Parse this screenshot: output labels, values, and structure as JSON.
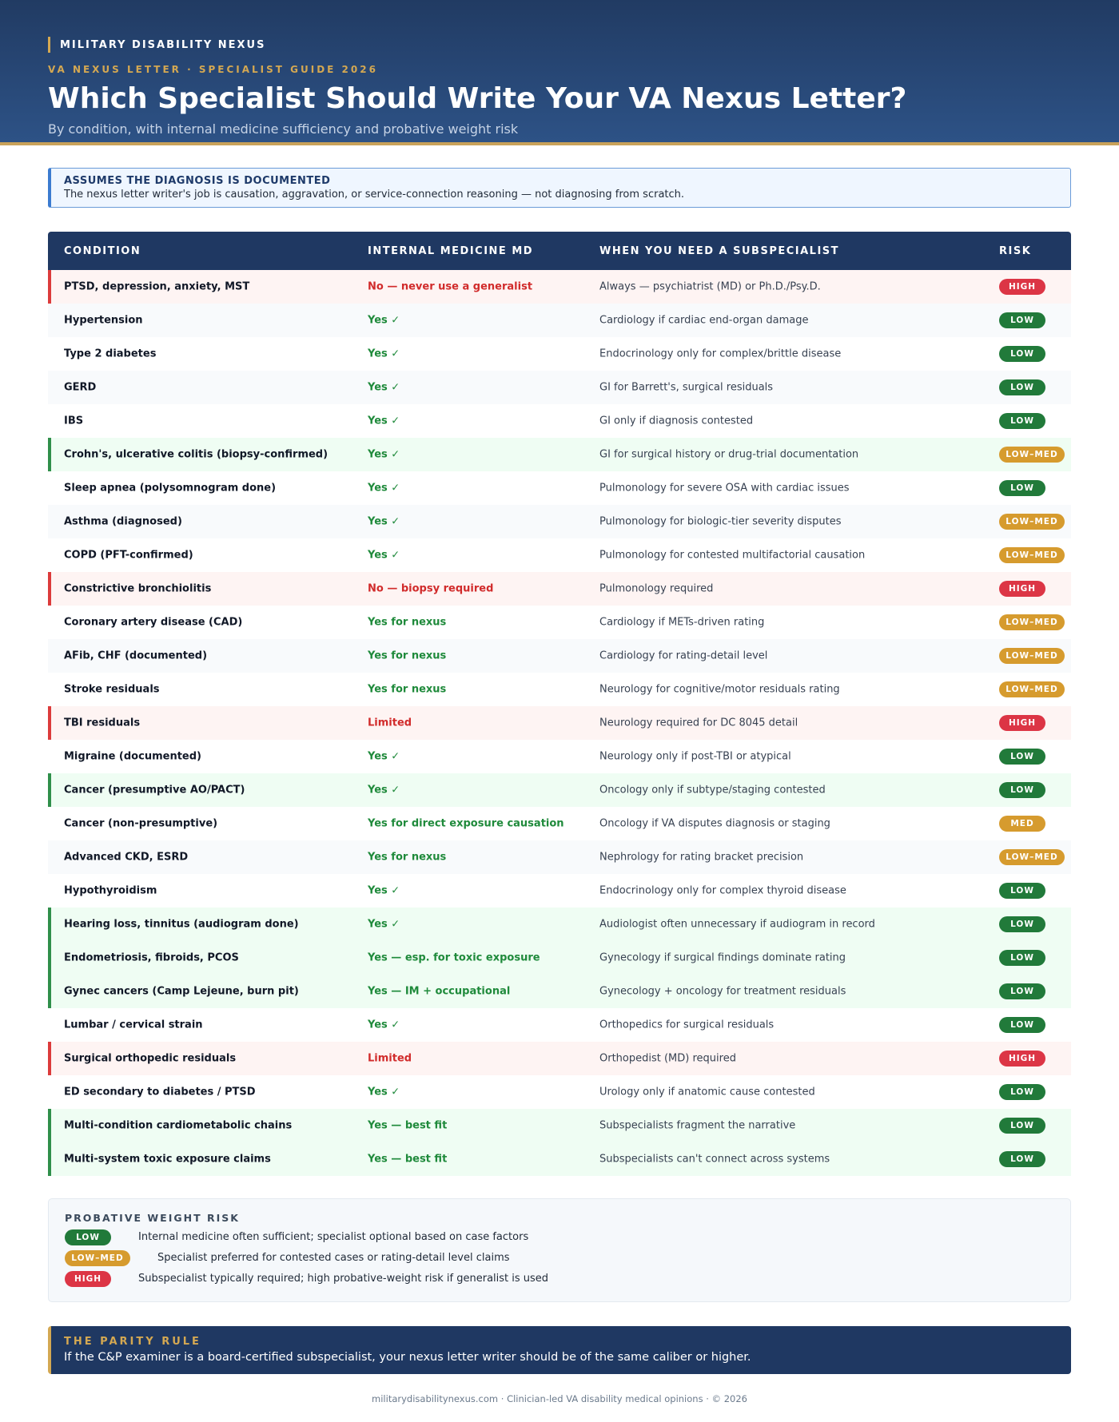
{
  "header": {
    "brand": "MILITARY DISABILITY NEXUS",
    "kicker": "VA NEXUS LETTER · SPECIALIST GUIDE 2026",
    "title": "Which Specialist Should Write Your VA Nexus Letter?",
    "subtitle": "By condition, with internal medicine sufficiency and probative weight risk"
  },
  "notice": {
    "title": "ASSUMES THE DIAGNOSIS IS DOCUMENTED",
    "text": "The nexus letter writer's job is causation, aggravation, or service-connection reasoning — not diagnosing from scratch."
  },
  "table": {
    "headers": [
      "CONDITION",
      "INTERNAL MEDICINE MD",
      "WHEN YOU NEED A SUBSPECIALIST",
      "RISK"
    ],
    "rows": [
      {
        "condition": "PTSD, depression, anxiety, MST",
        "im": "No — never use a generalist",
        "specialist": "Always — psychiatrist (MD) or Ph.D./Psy.D.",
        "risk": "HIGH"
      },
      {
        "condition": "Hypertension",
        "im": "Yes ✓",
        "specialist": "Cardiology if cardiac end-organ damage",
        "risk": "LOW"
      },
      {
        "condition": "Type 2 diabetes",
        "im": "Yes ✓",
        "specialist": "Endocrinology only for complex/brittle disease",
        "risk": "LOW"
      },
      {
        "condition": "GERD",
        "im": "Yes ✓",
        "specialist": "GI for Barrett's, surgical residuals",
        "risk": "LOW"
      },
      {
        "condition": "IBS",
        "im": "Yes ✓",
        "specialist": "GI only if diagnosis contested",
        "risk": "LOW"
      },
      {
        "condition": "Crohn's, ulcerative colitis (biopsy-confirmed)",
        "im": "Yes ✓",
        "specialist": "GI for surgical history or drug-trial documentation",
        "risk": "LOW–MED"
      },
      {
        "condition": "Sleep apnea (polysomnogram done)",
        "im": "Yes ✓",
        "specialist": "Pulmonology for severe OSA with cardiac issues",
        "risk": "LOW"
      },
      {
        "condition": "Asthma (diagnosed)",
        "im": "Yes ✓",
        "specialist": "Pulmonology for biologic-tier severity disputes",
        "risk": "LOW–MED"
      },
      {
        "condition": "COPD (PFT-confirmed)",
        "im": "Yes ✓",
        "specialist": "Pulmonology for contested multifactorial causation",
        "risk": "LOW–MED"
      },
      {
        "condition": "Constrictive bronchiolitis",
        "im": "No — biopsy required",
        "specialist": "Pulmonology required",
        "risk": "HIGH"
      },
      {
        "condition": "Coronary artery disease (CAD)",
        "im": "Yes for nexus",
        "specialist": "Cardiology if METs-driven rating",
        "risk": "LOW–MED"
      },
      {
        "condition": "AFib, CHF (documented)",
        "im": "Yes for nexus",
        "specialist": "Cardiology for rating-detail level",
        "risk": "LOW–MED"
      },
      {
        "condition": "Stroke residuals",
        "im": "Yes for nexus",
        "specialist": "Neurology for cognitive/motor residuals rating",
        "risk": "LOW–MED"
      },
      {
        "condition": "TBI residuals",
        "im": "Limited",
        "specialist": "Neurology required for DC 8045 detail",
        "risk": "HIGH"
      },
      {
        "condition": "Migraine (documented)",
        "im": "Yes ✓",
        "specialist": "Neurology only if post-TBI or atypical",
        "risk": "LOW"
      },
      {
        "condition": "Cancer (presumptive AO/PACT)",
        "im": "Yes ✓",
        "specialist": "Oncology only if subtype/staging contested",
        "risk": "LOW"
      },
      {
        "condition": "Cancer (non-presumptive)",
        "im": "Yes for direct exposure causation",
        "specialist": "Oncology if VA disputes diagnosis or staging",
        "risk": "MED"
      },
      {
        "condition": "Advanced CKD, ESRD",
        "im": "Yes for nexus",
        "specialist": "Nephrology for rating bracket precision",
        "risk": "LOW–MED"
      },
      {
        "condition": "Hypothyroidism",
        "im": "Yes ✓",
        "specialist": "Endocrinology only for complex thyroid disease",
        "risk": "LOW"
      },
      {
        "condition": "Hearing loss, tinnitus (audiogram done)",
        "im": "Yes ✓",
        "specialist": "Audiologist often unnecessary if audiogram in record",
        "risk": "LOW"
      },
      {
        "condition": "Endometriosis, fibroids, PCOS",
        "im": "Yes — esp. for toxic exposure",
        "specialist": "Gynecology if surgical findings dominate rating",
        "risk": "LOW"
      },
      {
        "condition": "Gynec cancers (Camp Lejeune, burn pit)",
        "im": "Yes — IM + occupational",
        "specialist": "Gynecology + oncology for treatment residuals",
        "risk": "LOW"
      },
      {
        "condition": "Lumbar / cervical strain",
        "im": "Yes ✓",
        "specialist": "Orthopedics for surgical residuals",
        "risk": "LOW"
      },
      {
        "condition": "Surgical orthopedic residuals",
        "im": "Limited",
        "specialist": "Orthopedist (MD) required",
        "risk": "HIGH"
      },
      {
        "condition": "ED secondary to diabetes / PTSD",
        "im": "Yes ✓",
        "specialist": "Urology only if anatomic cause contested",
        "risk": "LOW"
      },
      {
        "condition": "Multi-condition cardiometabolic chains",
        "im": "Yes — best fit",
        "specialist": "Subspecialists fragment the narrative",
        "risk": "LOW"
      },
      {
        "condition": "Multi-system toxic exposure claims",
        "im": "Yes — best fit",
        "specialist": "Subspecialists can't connect across systems",
        "risk": "LOW"
      }
    ]
  },
  "legend": {
    "title": "PROBATIVE WEIGHT RISK",
    "items": [
      {
        "label": "LOW",
        "text": "Internal medicine often sufficient; specialist optional based on case factors"
      },
      {
        "label": "LOW–MED",
        "text": "Specialist preferred for contested cases or rating-detail level claims"
      },
      {
        "label": "HIGH",
        "text": "Subspecialist typically required; high probative-weight risk if generalist is used"
      }
    ]
  },
  "parity": {
    "title": "THE PARITY RULE",
    "text": "If the C&P examiner is a board-certified subspecialist, your nexus letter writer should be of the same caliber or higher."
  },
  "footer": "militarydisabilitynexus.com · Clinician-led VA disability medical opinions · © 2026",
  "colors": {
    "navy": "#1f3862",
    "gold": "#d4a852",
    "low": "#217a3a",
    "low_med": "#d69b2e",
    "high": "#dc3545",
    "green_text": "#1f8a3b",
    "red_text": "#d12b2b"
  }
}
